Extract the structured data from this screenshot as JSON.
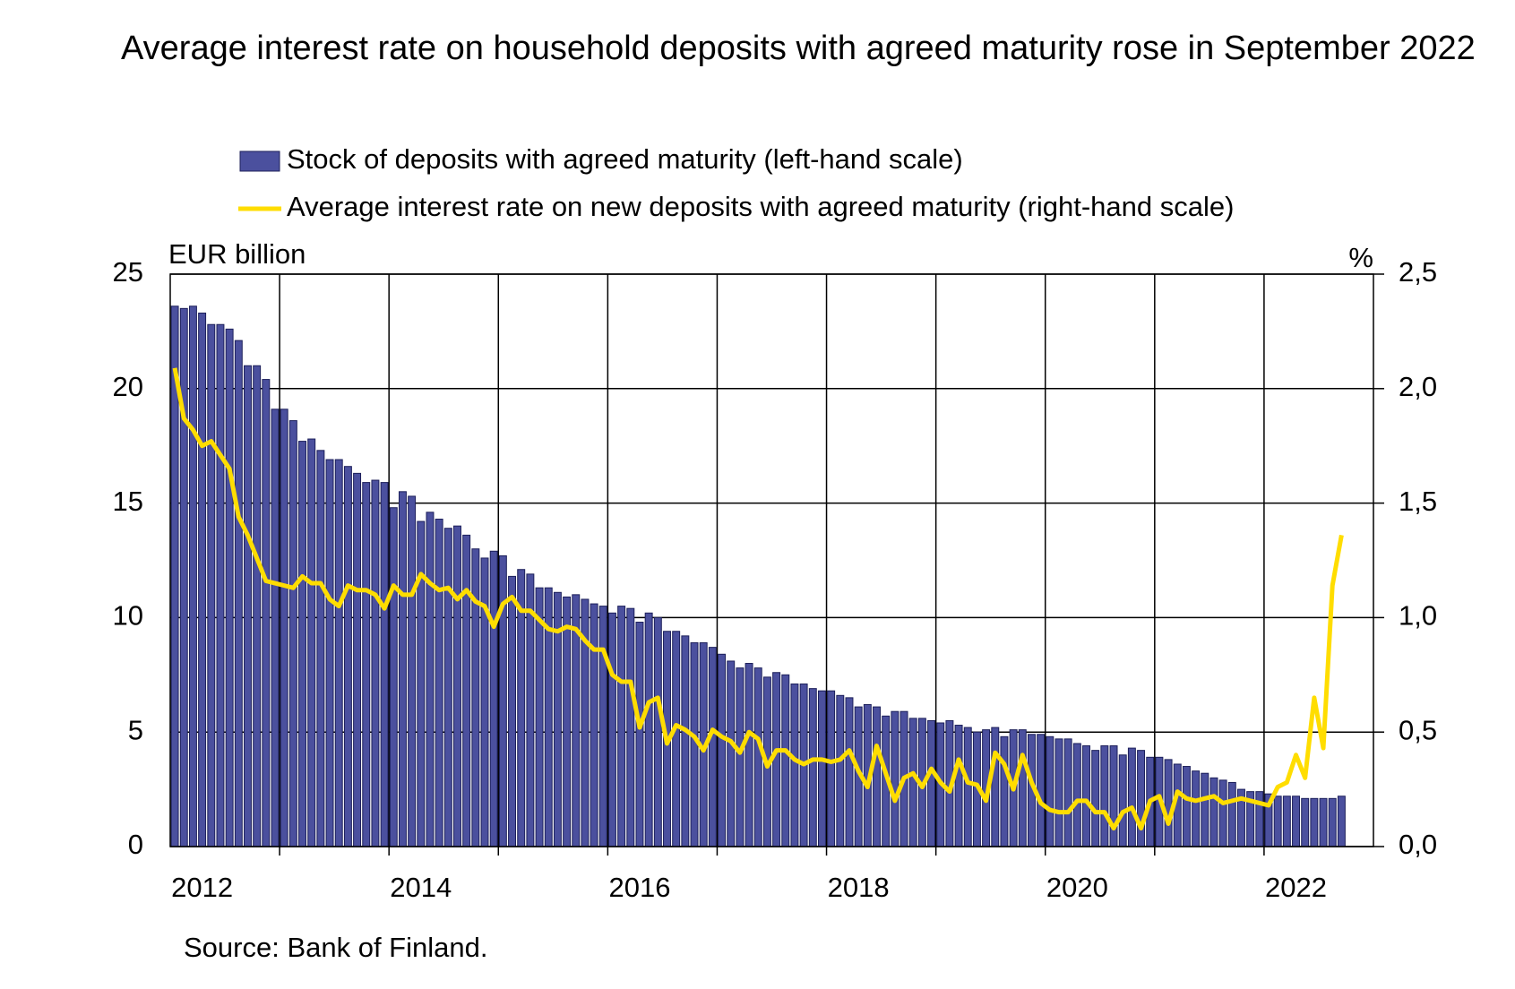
{
  "chart_data": {
    "type": "bar-line",
    "title": "Average interest rate on household deposits with agreed maturity rose in September 2022",
    "y_label": "EUR billion",
    "y2_label": "%",
    "source": "Source: Bank of Finland.",
    "categories": [
      null,
      null,
      null,
      "2012",
      null,
      null,
      null,
      null,
      null,
      null,
      null,
      null,
      null,
      null,
      null,
      null,
      null,
      null,
      null,
      null,
      null,
      null,
      null,
      null,
      null,
      null,
      null,
      "2014",
      null,
      null,
      null,
      null,
      null,
      null,
      null,
      null,
      null,
      null,
      null,
      null,
      null,
      null,
      null,
      null,
      null,
      null,
      null,
      null,
      null,
      null,
      null,
      "2016",
      null,
      null,
      null,
      null,
      null,
      null,
      null,
      null,
      null,
      null,
      null,
      null,
      null,
      null,
      null,
      null,
      null,
      null,
      null,
      null,
      null,
      null,
      null,
      "2018",
      null,
      null,
      null,
      null,
      null,
      null,
      null,
      null,
      null,
      null,
      null,
      null,
      null,
      null,
      null,
      null,
      null,
      null,
      null,
      null,
      null,
      null,
      null,
      "2020",
      null,
      null,
      null,
      null,
      null,
      null,
      null,
      null,
      null,
      null,
      null,
      null,
      null,
      null,
      null,
      null,
      null,
      null,
      null,
      null,
      null,
      null,
      null,
      "2022",
      null,
      null,
      null,
      null,
      null
    ],
    "series": [
      {
        "name": "Stock of deposits with agreed maturity (left-hand scale)",
        "type": "bar",
        "color": "#4b509e",
        "axis": "y",
        "values": [
          23.6,
          23.5,
          23.6,
          23.3,
          22.8,
          22.8,
          22.6,
          22.1,
          21.0,
          21.0,
          20.4,
          19.1,
          19.1,
          18.6,
          17.7,
          17.8,
          17.3,
          16.9,
          16.9,
          16.6,
          16.3,
          15.9,
          16.0,
          15.9,
          14.8,
          15.5,
          15.3,
          14.2,
          14.6,
          14.3,
          13.9,
          14.0,
          13.6,
          13.0,
          12.6,
          12.9,
          12.7,
          11.8,
          12.1,
          11.9,
          11.3,
          11.3,
          11.1,
          10.9,
          11.0,
          10.8,
          10.6,
          10.5,
          10.2,
          10.5,
          10.4,
          9.8,
          10.2,
          10.0,
          9.4,
          9.4,
          9.2,
          8.9,
          8.9,
          8.7,
          8.4,
          8.1,
          7.8,
          8.0,
          7.8,
          7.4,
          7.6,
          7.5,
          7.1,
          7.1,
          6.9,
          6.8,
          6.8,
          6.6,
          6.5,
          6.1,
          6.2,
          6.1,
          5.7,
          5.9,
          5.9,
          5.6,
          5.6,
          5.5,
          5.4,
          5.5,
          5.3,
          5.2,
          5.0,
          5.1,
          5.2,
          4.8,
          5.1,
          5.1,
          4.9,
          4.9,
          4.8,
          4.7,
          4.7,
          4.5,
          4.4,
          4.2,
          4.4,
          4.4,
          4.0,
          4.3,
          4.2,
          3.9,
          3.9,
          3.8,
          3.6,
          3.5,
          3.3,
          3.2,
          3.0,
          2.9,
          2.8,
          2.5,
          2.4,
          2.4,
          2.3,
          2.2,
          2.2,
          2.2,
          2.1,
          2.1,
          2.1,
          2.1,
          2.2
        ]
      },
      {
        "name": "Average interest rate on new deposits with agreed maturity (right-hand scale)",
        "type": "line",
        "color": "#ffdd00",
        "axis": "y2",
        "values": [
          2.09,
          1.87,
          1.82,
          1.75,
          1.77,
          1.71,
          1.65,
          1.44,
          1.36,
          1.26,
          1.16,
          1.15,
          1.14,
          1.13,
          1.18,
          1.15,
          1.15,
          1.08,
          1.05,
          1.14,
          1.12,
          1.12,
          1.1,
          1.04,
          1.14,
          1.1,
          1.1,
          1.19,
          1.15,
          1.12,
          1.13,
          1.08,
          1.12,
          1.07,
          1.05,
          0.96,
          1.06,
          1.09,
          1.03,
          1.03,
          0.99,
          0.95,
          0.94,
          0.96,
          0.95,
          0.9,
          0.86,
          0.86,
          0.75,
          0.72,
          0.72,
          0.52,
          0.63,
          0.65,
          0.45,
          0.53,
          0.51,
          0.48,
          0.42,
          0.51,
          0.48,
          0.46,
          0.41,
          0.5,
          0.47,
          0.35,
          0.42,
          0.42,
          0.38,
          0.36,
          0.38,
          0.38,
          0.37,
          0.38,
          0.42,
          0.33,
          0.26,
          0.44,
          0.32,
          0.2,
          0.3,
          0.32,
          0.26,
          0.34,
          0.28,
          0.24,
          0.38,
          0.28,
          0.27,
          0.2,
          0.41,
          0.36,
          0.25,
          0.4,
          0.28,
          0.19,
          0.16,
          0.15,
          0.15,
          0.2,
          0.2,
          0.15,
          0.15,
          0.08,
          0.15,
          0.17,
          0.08,
          0.2,
          0.22,
          0.1,
          0.24,
          0.21,
          0.2,
          0.21,
          0.22,
          0.19,
          0.2,
          0.21,
          0.2,
          0.19,
          0.18,
          0.26,
          0.28,
          0.4,
          0.3,
          0.65,
          0.43,
          1.14,
          1.36
        ]
      }
    ],
    "ylim": [
      0,
      25
    ],
    "yticks": [
      0,
      5,
      10,
      15,
      20,
      25
    ],
    "y2lim": [
      0,
      2.5
    ],
    "y2ticks": [
      {
        "value": 0,
        "label": "0,0"
      },
      {
        "value": 0.5,
        "label": "0,5"
      },
      {
        "value": 1,
        "label": "1,0"
      },
      {
        "value": 1.5,
        "label": "1,5"
      },
      {
        "value": 2,
        "label": "2,0"
      },
      {
        "value": 2.5,
        "label": "2,5"
      }
    ],
    "grid": true
  }
}
